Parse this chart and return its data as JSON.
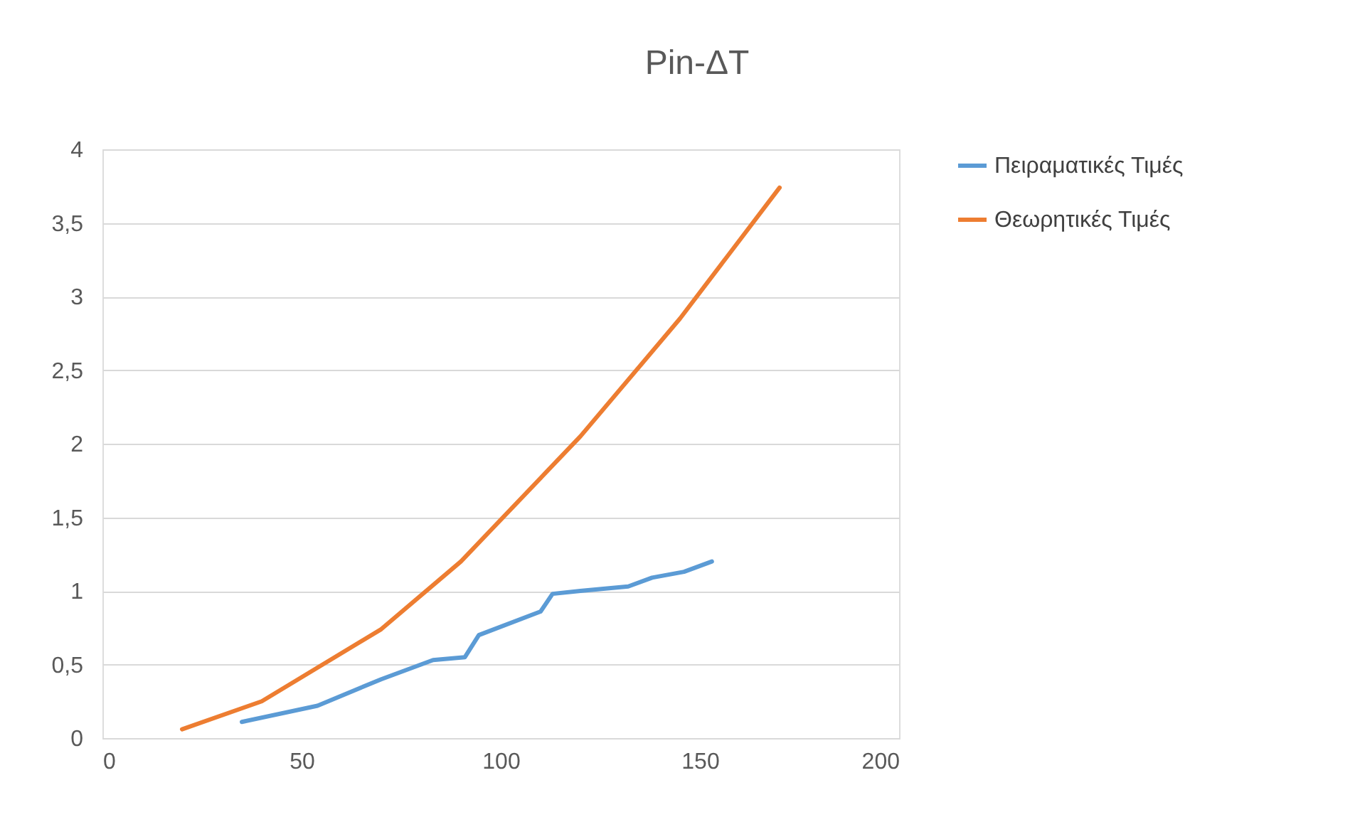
{
  "chart_data": {
    "type": "line",
    "title": "Pin-ΔT",
    "xlim": [
      0,
      200
    ],
    "xticks": [
      0,
      50,
      100,
      150,
      200
    ],
    "ylim": [
      0,
      4
    ],
    "yticks": [
      0,
      {
        "value": 0.5,
        "label": "0,5"
      },
      1,
      {
        "value": 1.5,
        "label": "1,5"
      },
      2,
      {
        "value": 2.5,
        "label": "2,5"
      },
      3,
      {
        "value": 3.5,
        "label": "3,5"
      },
      4
    ],
    "grid": "y",
    "legend": "right",
    "marker": "none",
    "line_style": "solid",
    "series": [
      {
        "name": "Πειραματικές Τιμές",
        "color": "#5b9bd5",
        "x": [
          35,
          54,
          70,
          83,
          91,
          94.5,
          110,
          113,
          120,
          132,
          138,
          146,
          153
        ],
        "values": [
          0.11,
          0.22,
          0.4,
          0.53,
          0.55,
          0.7,
          0.86,
          0.98,
          1.0,
          1.03,
          1.09,
          1.13,
          1.2
        ]
      },
      {
        "name": "Θεωρητικές Τιμές",
        "color": "#ed7d31",
        "x": [
          20,
          40,
          70,
          90,
          120,
          145,
          170
        ],
        "values": [
          0.06,
          0.25,
          0.74,
          1.2,
          2.05,
          2.85,
          3.74
        ]
      }
    ]
  }
}
